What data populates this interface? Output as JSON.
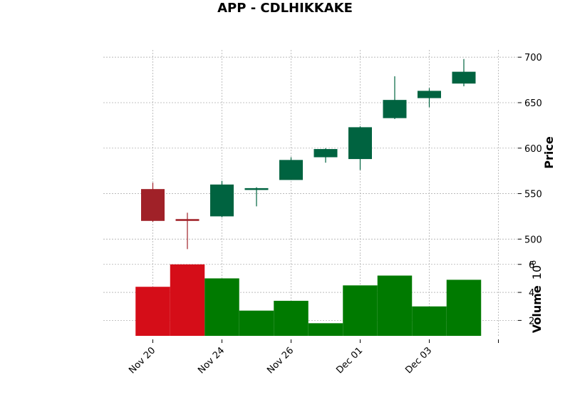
{
  "chart_data": {
    "type": "candlestick",
    "title": "APP - CDLHIKKAKE",
    "ylabel": "Price",
    "volume_label": "Volume",
    "volume_exponent_base": "10",
    "volume_exponent": "6",
    "price_ylim": [
      483,
      708
    ],
    "volume_ylim": [
      0.9,
      6.7
    ],
    "price_yticks": [
      "500",
      "550",
      "600",
      "650",
      "700"
    ],
    "price_ytick_values": [
      500,
      550,
      600,
      650,
      700
    ],
    "volume_yticks": [
      "2",
      "4",
      "6"
    ],
    "volume_ytick_values": [
      2,
      4,
      6
    ],
    "x_tick_labels": [
      {
        "index": 0,
        "label": "Nov 20"
      },
      {
        "index": 2,
        "label": "Nov 24"
      },
      {
        "index": 4,
        "label": "Nov 26"
      },
      {
        "index": 6,
        "label": "Dec 01"
      },
      {
        "index": 8,
        "label": "Dec 03"
      },
      {
        "index": 10,
        "label": ""
      }
    ],
    "up_color": "#006340",
    "down_color": "#a02128",
    "volume_up_color": "#007a00",
    "volume_down_color": "#d50d18",
    "candles": [
      {
        "open": 555,
        "high": 562,
        "low": 519,
        "close": 520,
        "volume": 4.4
      },
      {
        "open": 522,
        "high": 529,
        "low": 489,
        "close": 520,
        "volume": 6.0
      },
      {
        "open": 525,
        "high": 564,
        "low": 524,
        "close": 560,
        "volume": 5.0
      },
      {
        "open": 555,
        "high": 557,
        "low": 536,
        "close": 556,
        "volume": 2.7
      },
      {
        "open": 565,
        "high": 590,
        "low": 565,
        "close": 587,
        "volume": 3.4
      },
      {
        "open": 590,
        "high": 600,
        "low": 584,
        "close": 599,
        "volume": 1.8
      },
      {
        "open": 588,
        "high": 624,
        "low": 576,
        "close": 623,
        "volume": 4.5
      },
      {
        "open": 633,
        "high": 679,
        "low": 632,
        "close": 653,
        "volume": 5.2
      },
      {
        "open": 655,
        "high": 666,
        "low": 645,
        "close": 663,
        "volume": 3.0
      },
      {
        "open": 671,
        "high": 698,
        "low": 668,
        "close": 684,
        "volume": 4.9
      }
    ]
  }
}
